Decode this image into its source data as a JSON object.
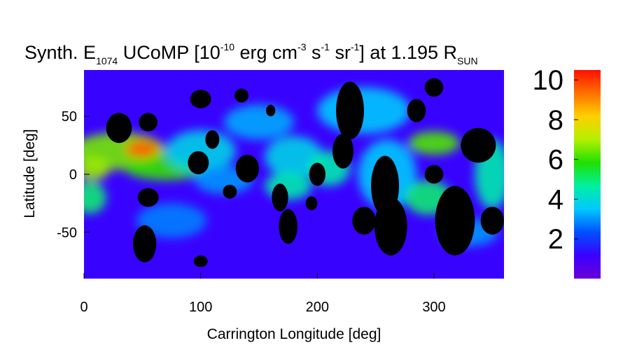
{
  "chart_data": {
    "type": "heatmap",
    "title": {
      "prefix": "Synth. E",
      "sub": "1074",
      "mid": " UCoMP [10",
      "sup1": "-10",
      "p2": " erg cm",
      "sup2": "-3",
      "p3": " s",
      "sup3": "-1",
      "p4": " sr",
      "sup4": "-1",
      "p5": "] at 1.195 R",
      "sub2": "SUN"
    },
    "xlabel": "Carrington Longitude [deg]",
    "ylabel": "Latitude [deg]",
    "xlim": [
      0,
      360
    ],
    "ylim": [
      -90,
      90
    ],
    "x_ticks": [
      {
        "value": 0,
        "label": "0"
      },
      {
        "value": 100,
        "label": "100"
      },
      {
        "value": 200,
        "label": "200"
      },
      {
        "value": 300,
        "label": "300"
      }
    ],
    "y_ticks": [
      {
        "value": 50,
        "label": "50"
      },
      {
        "value": 0,
        "label": "0"
      },
      {
        "value": -50,
        "label": "-50"
      }
    ],
    "colorbar": {
      "range": [
        0,
        10.5
      ],
      "ticks": [
        {
          "value": 2,
          "label": "2"
        },
        {
          "value": 4,
          "label": "4"
        },
        {
          "value": 6,
          "label": "6"
        },
        {
          "value": 8,
          "label": "8"
        },
        {
          "value": 10,
          "label": "10"
        }
      ]
    },
    "background_level": 1.2,
    "masked_color": "#000000",
    "colormap": [
      "#6a00d8",
      "#3a00ff",
      "#0050ff",
      "#00c8ff",
      "#00f0a0",
      "#20e000",
      "#b4f000",
      "#ffd000",
      "#ff7000",
      "#ff1000"
    ],
    "bright_regions": [
      {
        "lon": 30,
        "lat": 20,
        "value": 6.5,
        "r_lon": 40,
        "r_lat": 16
      },
      {
        "lon": 50,
        "lat": 22,
        "value": 9.5,
        "r_lon": 14,
        "r_lat": 8
      },
      {
        "lon": 8,
        "lat": 5,
        "value": 6.8,
        "r_lon": 14,
        "r_lat": 10
      },
      {
        "lon": 70,
        "lat": 5,
        "value": 6,
        "r_lon": 35,
        "r_lat": 10
      },
      {
        "lon": 5,
        "lat": -20,
        "value": 5,
        "r_lon": 14,
        "r_lat": 14
      },
      {
        "lon": 100,
        "lat": 20,
        "value": 3.8,
        "r_lon": 30,
        "r_lat": 18
      },
      {
        "lon": 150,
        "lat": 45,
        "value": 3.2,
        "r_lon": 30,
        "r_lat": 15
      },
      {
        "lon": 180,
        "lat": 15,
        "value": 3.8,
        "r_lon": 25,
        "r_lat": 18
      },
      {
        "lon": 175,
        "lat": -10,
        "value": 4.5,
        "r_lon": 20,
        "r_lat": 12
      },
      {
        "lon": 210,
        "lat": 5,
        "value": 4.5,
        "r_lon": 18,
        "r_lat": 15
      },
      {
        "lon": 240,
        "lat": 55,
        "value": 3.5,
        "r_lon": 40,
        "r_lat": 20
      },
      {
        "lon": 260,
        "lat": 0,
        "value": 3.5,
        "r_lon": 25,
        "r_lat": 30
      },
      {
        "lon": 300,
        "lat": 27,
        "value": 6.2,
        "r_lon": 22,
        "r_lat": 10
      },
      {
        "lon": 295,
        "lat": -20,
        "value": 5,
        "r_lon": 20,
        "r_lat": 15
      },
      {
        "lon": 350,
        "lat": 0,
        "value": 4.5,
        "r_lon": 15,
        "r_lat": 30
      },
      {
        "lon": 330,
        "lat": -50,
        "value": 3,
        "r_lon": 25,
        "r_lat": 12
      },
      {
        "lon": 120,
        "lat": -5,
        "value": 3,
        "r_lon": 25,
        "r_lat": 12
      },
      {
        "lon": 75,
        "lat": -40,
        "value": 2.8,
        "r_lon": 30,
        "r_lat": 15
      }
    ],
    "masked_regions": [
      {
        "lon": 228,
        "lat": 55,
        "r_lon": 12,
        "r_lat": 25
      },
      {
        "lon": 222,
        "lat": 20,
        "r_lon": 9,
        "r_lat": 15
      },
      {
        "lon": 258,
        "lat": -10,
        "r_lon": 12,
        "r_lat": 26
      },
      {
        "lon": 263,
        "lat": -45,
        "r_lon": 14,
        "r_lat": 25
      },
      {
        "lon": 240,
        "lat": -40,
        "r_lon": 10,
        "r_lat": 12
      },
      {
        "lon": 285,
        "lat": 55,
        "r_lon": 8,
        "r_lat": 10
      },
      {
        "lon": 300,
        "lat": 75,
        "r_lon": 8,
        "r_lat": 8
      },
      {
        "lon": 338,
        "lat": 25,
        "r_lon": 15,
        "r_lat": 15
      },
      {
        "lon": 318,
        "lat": -40,
        "r_lon": 17,
        "r_lat": 30
      },
      {
        "lon": 350,
        "lat": -40,
        "r_lon": 10,
        "r_lat": 12
      },
      {
        "lon": 300,
        "lat": 0,
        "r_lon": 8,
        "r_lat": 8
      },
      {
        "lon": 30,
        "lat": 40,
        "r_lon": 11,
        "r_lat": 13
      },
      {
        "lon": 55,
        "lat": 45,
        "r_lon": 8,
        "r_lat": 8
      },
      {
        "lon": 100,
        "lat": 65,
        "r_lon": 9,
        "r_lat": 8
      },
      {
        "lon": 110,
        "lat": 30,
        "r_lon": 6,
        "r_lat": 8
      },
      {
        "lon": 98,
        "lat": 10,
        "r_lon": 9,
        "r_lat": 10
      },
      {
        "lon": 55,
        "lat": -20,
        "r_lon": 9,
        "r_lat": 8
      },
      {
        "lon": 52,
        "lat": -60,
        "r_lon": 10,
        "r_lat": 16
      },
      {
        "lon": 140,
        "lat": 5,
        "r_lon": 10,
        "r_lat": 12
      },
      {
        "lon": 168,
        "lat": -20,
        "r_lon": 7,
        "r_lat": 12
      },
      {
        "lon": 175,
        "lat": -45,
        "r_lon": 8,
        "r_lat": 15
      },
      {
        "lon": 200,
        "lat": 0,
        "r_lon": 7,
        "r_lat": 10
      },
      {
        "lon": 125,
        "lat": -15,
        "r_lon": 6,
        "r_lat": 6
      },
      {
        "lon": 195,
        "lat": -25,
        "r_lon": 5,
        "r_lat": 6
      },
      {
        "lon": 100,
        "lat": -75,
        "r_lon": 6,
        "r_lat": 5
      },
      {
        "lon": 135,
        "lat": 68,
        "r_lon": 6,
        "r_lat": 6
      },
      {
        "lon": 160,
        "lat": 55,
        "r_lon": 4,
        "r_lat": 5
      }
    ]
  }
}
